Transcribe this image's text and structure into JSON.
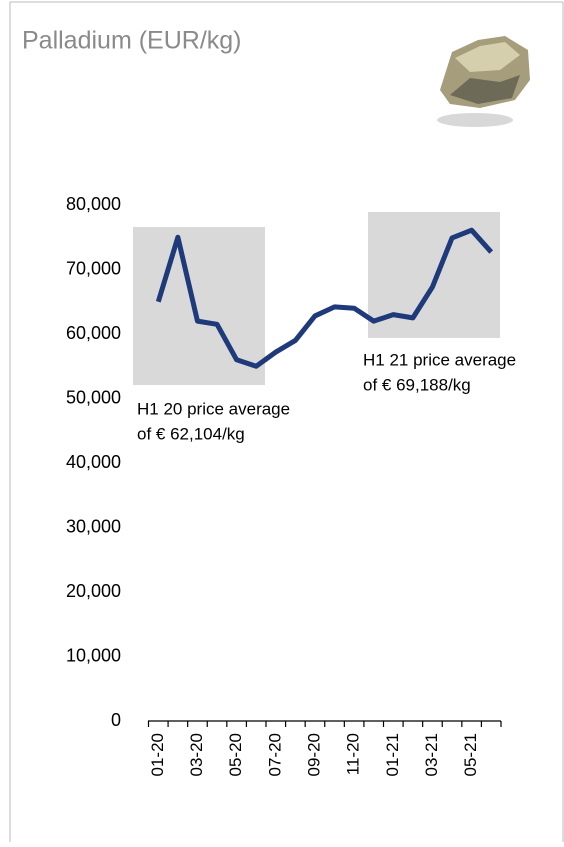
{
  "chart_data": {
    "type": "line",
    "title": "Palladium (EUR/kg)",
    "categories": [
      "01-20",
      null,
      "03-20",
      null,
      "05-20",
      null,
      "07-20",
      null,
      "09-20",
      null,
      "11-20",
      null,
      "01-21",
      null,
      "03-21",
      null,
      "05-21",
      null
    ],
    "series": [
      {
        "name": "Palladium",
        "color": "#1f3a7a",
        "values": [
          65000,
          75000,
          62000,
          61500,
          56000,
          55000,
          57200,
          59000,
          62800,
          64200,
          64000,
          62000,
          63000,
          62500,
          67300,
          74900,
          76100,
          72700
        ]
      }
    ],
    "ylim": [
      0,
      80000
    ],
    "yticks": [
      {
        "value": 0,
        "label": "0"
      },
      {
        "value": 10000,
        "label": "10,000"
      },
      {
        "value": 20000,
        "label": "20,000"
      },
      {
        "value": 30000,
        "label": "30,000"
      },
      {
        "value": 40000,
        "label": "40,000"
      },
      {
        "value": 50000,
        "label": "50,000"
      },
      {
        "value": 60000,
        "label": "60,000"
      },
      {
        "value": 70000,
        "label": "70,000"
      },
      {
        "value": 80000,
        "label": "80,000"
      }
    ],
    "annotations": [
      [
        "H1 20 price average",
        "of € 62,104/kg"
      ],
      [
        "H1 21 price average",
        "of € 69,188/kg"
      ]
    ]
  }
}
